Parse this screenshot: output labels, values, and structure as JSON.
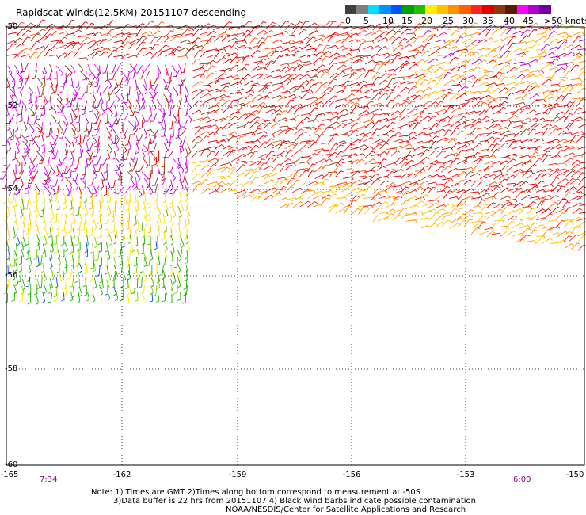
{
  "title": "Rapidscat Winds(12.5KM) 20151107 descending",
  "legend": {
    "colors": [
      "#404040",
      "#7f7f7f",
      "#00e0ff",
      "#0090ff",
      "#0050ff",
      "#00a000",
      "#20c000",
      "#ffee00",
      "#ffc000",
      "#ff9000",
      "#ff6000",
      "#ff2020",
      "#e00000",
      "#8b3a10",
      "#5a1a00",
      "#ff00ff",
      "#b000d0",
      "#6a00a0"
    ],
    "labels": [
      "0",
      "5",
      "10",
      "15",
      "20",
      "25",
      "30",
      "35",
      "40",
      "45",
      ">50 knots"
    ]
  },
  "axes": {
    "y_labels": [
      "-50",
      "-52",
      "-54",
      "-56",
      "-58",
      "-60"
    ],
    "x_labels": [
      "-165",
      "-162",
      "-159",
      "-156",
      "-153",
      "-150"
    ]
  },
  "times": {
    "left": "7:34",
    "right": "6:00"
  },
  "notes": [
    "Note: 1) Times are GMT 2)Times along bottom correspond to measurement at -50S",
    "3)Data buffer is 22 hrs from 20151107 4) Black wind barbs indicate possible contamination",
    "NOAA/NESDIS/Center for Satellite Applications and Research"
  ]
}
